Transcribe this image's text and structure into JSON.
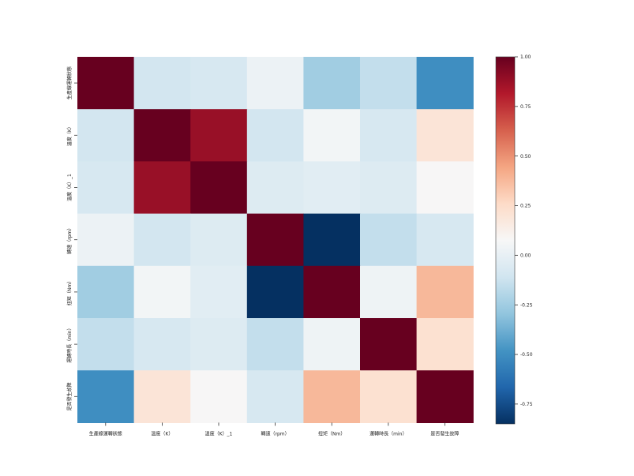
{
  "chart_data": {
    "type": "heatmap",
    "title": "",
    "xlabel": "",
    "ylabel": "",
    "x_labels": [
      "生產線運轉狀態",
      "溫度（K）",
      "溫度（K）_1",
      "轉速（rpm）",
      "扭矩（Nm）",
      "運轉時長（min）",
      "是否發生故障"
    ],
    "y_labels": [
      "生產線運轉狀態",
      "溫度（K）",
      "溫度（K）_1",
      "轉速（rpm）",
      "扭矩（Nm）",
      "運轉時長（min）",
      "是否發生故障"
    ],
    "values": [
      [
        1.0,
        -0.1,
        -0.08,
        0.02,
        -0.25,
        -0.15,
        -0.5
      ],
      [
        -0.1,
        1.0,
        0.88,
        -0.1,
        0.05,
        -0.08,
        0.2
      ],
      [
        -0.08,
        0.88,
        1.0,
        -0.05,
        -0.03,
        -0.05,
        0.08
      ],
      [
        0.02,
        -0.1,
        -0.05,
        1.0,
        -0.88,
        -0.15,
        -0.08
      ],
      [
        -0.25,
        0.05,
        -0.03,
        -0.88,
        1.0,
        0.03,
        0.38
      ],
      [
        -0.15,
        -0.08,
        -0.05,
        -0.15,
        0.03,
        1.0,
        0.22
      ],
      [
        -0.5,
        0.2,
        0.08,
        -0.08,
        0.38,
        0.22,
        1.0
      ]
    ],
    "colormap": "RdBu_r",
    "vmin": -0.85,
    "vmax": 1.0,
    "colorbar_ticks": [
      "1.00",
      "0.75",
      "0.50",
      "0.25",
      "0.00",
      "-0.25",
      "-0.50",
      "-0.75"
    ],
    "colorbar_tick_values": [
      1.0,
      0.75,
      0.5,
      0.25,
      0.0,
      -0.25,
      -0.5,
      -0.75
    ],
    "legend": "colorbar-right"
  }
}
